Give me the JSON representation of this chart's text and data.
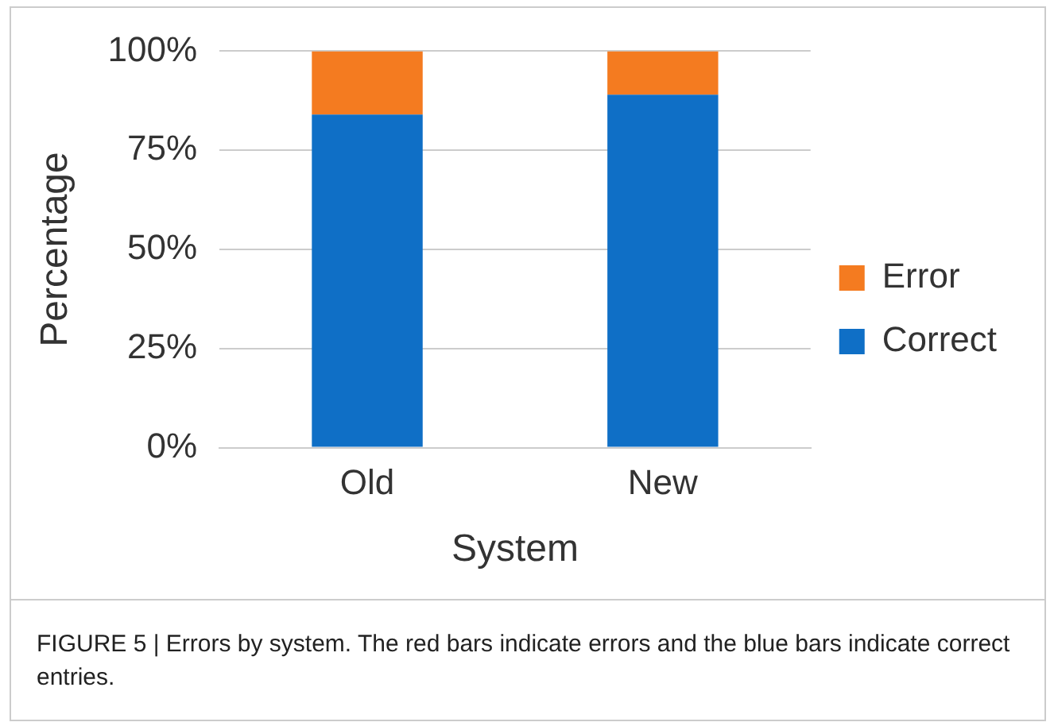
{
  "chart_data": {
    "type": "bar",
    "stacked": true,
    "xlabel": "System",
    "ylabel": "Percentage",
    "categories": [
      "Old",
      "New"
    ],
    "series": [
      {
        "name": "Correct",
        "color": "#0f6fc6",
        "values": [
          84,
          89
        ]
      },
      {
        "name": "Error",
        "color": "#f47b20",
        "values": [
          16,
          11
        ]
      }
    ],
    "ylim": [
      0,
      100
    ],
    "yticks": [
      {
        "value": 0,
        "label": "0%"
      },
      {
        "value": 25,
        "label": "25%"
      },
      {
        "value": 50,
        "label": "50%"
      },
      {
        "value": 75,
        "label": "75%"
      },
      {
        "value": 100,
        "label": "100%"
      }
    ],
    "grid": "y",
    "legend": "right",
    "annotations": [
      "FIGURE 5 | Errors by system. The red bars indicate errors and the blue bars indicate correct entries."
    ]
  }
}
